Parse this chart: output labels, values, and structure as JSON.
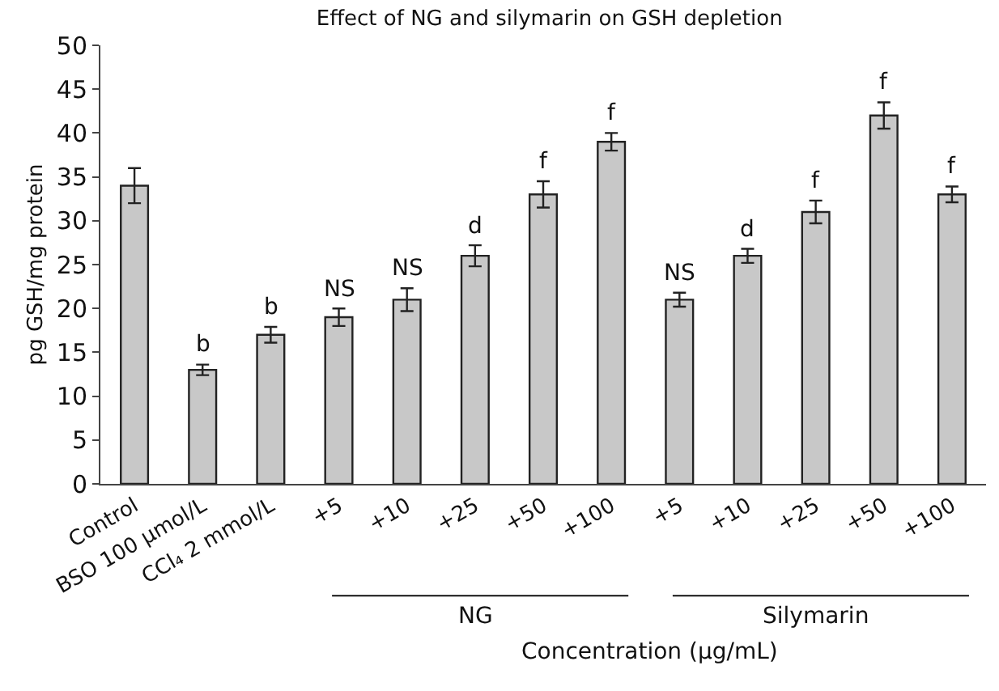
{
  "chart_data": {
    "type": "bar",
    "title": "Effect of NG and silymarin on GSH depletion",
    "xlabel": "Concentration (μg/mL)",
    "ylabel": "pg GSH/mg protein",
    "categories": [
      "Control",
      "BSO 100 μmol/L",
      "CCl₄ 2 mmol/L",
      "+5",
      "+10",
      "+25",
      "+50",
      "+100",
      "+5",
      "+10",
      "+25",
      "+50",
      "+100"
    ],
    "values": [
      34,
      13,
      17,
      19,
      21,
      26,
      33,
      39,
      21,
      26,
      31,
      42,
      33
    ],
    "errors": [
      2,
      0.6,
      0.9,
      1,
      1.3,
      1.2,
      1.5,
      1,
      0.8,
      0.8,
      1.3,
      1.5,
      0.9
    ],
    "value_labels": [
      null,
      "b",
      "b",
      "NS",
      "NS",
      "d",
      "f",
      "f",
      "NS",
      "d",
      "f",
      "f",
      "f"
    ],
    "color": "#c8c8c8",
    "annotations": [
      "NG",
      "Silymarin"
    ],
    "ylim": [
      0,
      50
    ],
    "yticks": [
      0,
      5,
      10,
      15,
      20,
      25,
      30,
      35,
      40,
      45,
      50
    ],
    "grid": false
  }
}
